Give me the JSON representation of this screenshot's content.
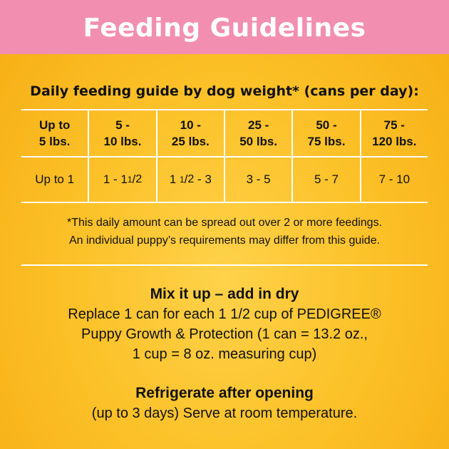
{
  "banner": {
    "title": "Feeding Guidelines"
  },
  "guide": {
    "title": "Daily feeding guide by dog weight* (cans per day):",
    "weights": [
      "Up to\n5 lbs.",
      "5 -\n10 lbs.",
      "10 -\n25 lbs.",
      "25 -\n50 lbs.",
      "50 -\n75 lbs.",
      "75 -\n120 lbs."
    ],
    "amounts": {
      "c0": "Up to 1",
      "c1_pre": "1 - 1",
      "c1_num": "1",
      "c1_den": "2",
      "c2_pre": "1",
      "c2_num": "1",
      "c2_den": "2",
      "c2_post": " - 3",
      "c3": "3 - 5",
      "c4": "5 - 7",
      "c5": "7 - 10"
    }
  },
  "footnote": {
    "line1": "*This daily amount can be spread out over 2 or more feedings.",
    "line2": "An individual puppy’s requirements may differ from this guide."
  },
  "mix": {
    "heading": "Mix it up – add in dry",
    "lines": [
      "Replace 1 can for each 1 1/2 cup of PEDIGREE®",
      "Puppy Growth & Protection (1 can = 13.2 oz.,",
      "1 cup = 8 oz. measuring cup)"
    ]
  },
  "fridge": {
    "heading": "Refrigerate after opening",
    "line": "(up to 3 days) Serve at room temperature."
  }
}
